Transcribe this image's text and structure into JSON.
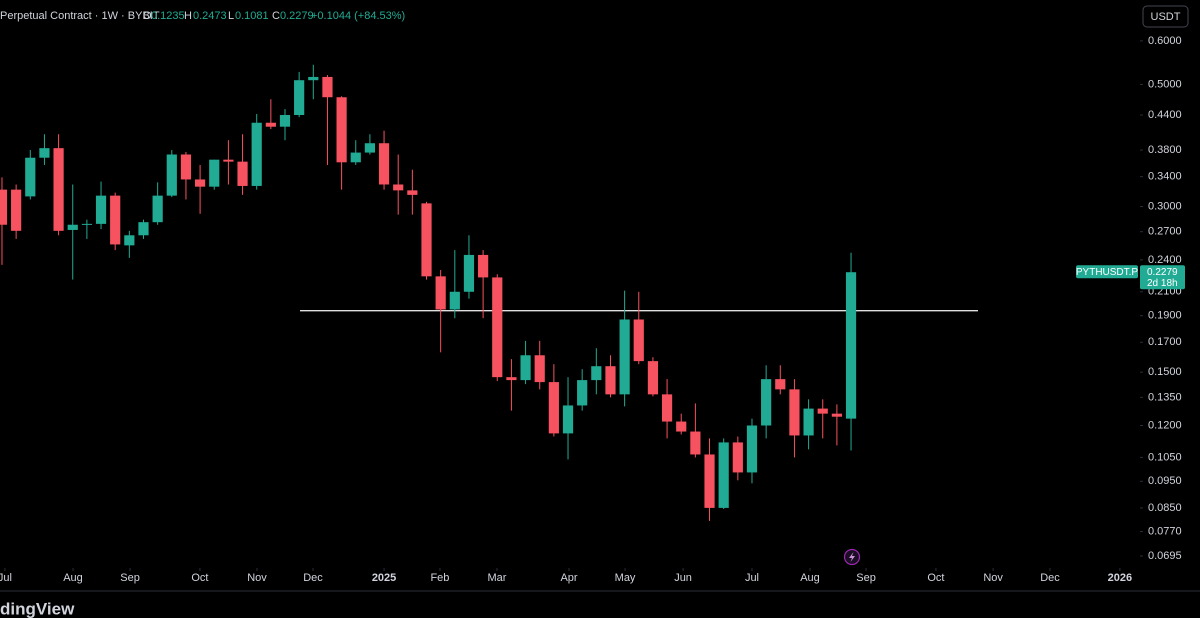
{
  "chart_data": {
    "type": "candlestick",
    "header": {
      "info": "Perpetual Contract · 1W · BYBIT",
      "ohlc_letters": [
        "O",
        "H",
        "L",
        "C"
      ],
      "change": "+0.1044 (+84.53%)"
    },
    "currency": "USDT",
    "symbol": "PYTHUSDT.P",
    "countdown": "2d 18h",
    "watermark": "dingView",
    "log_scale": true,
    "grid": false,
    "up_color": "#22ab94",
    "down_color": "#f7525f",
    "categories": [
      null,
      null,
      null,
      null,
      null,
      null,
      null,
      null,
      null,
      null,
      null,
      null,
      null,
      null,
      null,
      null,
      null,
      null,
      null,
      null,
      null,
      null,
      null,
      null,
      null,
      null,
      null,
      null,
      null,
      null,
      null,
      null,
      null,
      null,
      null,
      null,
      null,
      null,
      null,
      null,
      null,
      null,
      null,
      null,
      null,
      null,
      null,
      null,
      null,
      null,
      null,
      null,
      null,
      null,
      null,
      null,
      null,
      null,
      null,
      null,
      null
    ],
    "open": [
      0.322,
      0.322,
      0.313,
      0.368,
      0.383,
      0.272,
      0.278,
      0.279,
      0.314,
      0.255,
      0.266,
      0.281,
      0.314,
      0.373,
      0.336,
      0.326,
      0.365,
      0.362,
      0.327,
      0.426,
      0.419,
      0.44,
      0.509,
      0.516,
      0.474,
      0.361,
      0.376,
      0.391,
      0.329,
      0.321,
      0.304,
      0.224,
      0.195,
      0.21,
      0.245,
      0.223,
      0.1469,
      0.1451,
      0.161,
      0.1439,
      0.1161,
      0.1305,
      0.1451,
      0.1538,
      0.1367,
      0.187,
      0.1571,
      0.1367,
      0.122,
      0.117,
      0.1063,
      0.085,
      0.1118,
      0.0986,
      0.12,
      0.1457,
      0.1396,
      0.1151,
      0.1288,
      0.1261,
      0.1235
    ],
    "high": [
      0.339,
      0.329,
      0.38,
      0.406,
      0.406,
      0.329,
      0.284,
      0.333,
      0.318,
      0.271,
      0.284,
      0.332,
      0.38,
      0.377,
      0.357,
      0.365,
      0.396,
      0.406,
      0.442,
      0.47,
      0.451,
      0.527,
      0.543,
      0.52,
      0.476,
      0.396,
      0.406,
      0.412,
      0.373,
      0.35,
      0.306,
      0.23,
      0.25,
      0.266,
      0.25,
      0.226,
      0.1584,
      0.171,
      0.171,
      0.1551,
      0.1469,
      0.1519,
      0.1658,
      0.161,
      0.211,
      0.21,
      0.1597,
      0.1457,
      0.1261,
      0.1316,
      0.1137,
      0.1137,
      0.1146,
      0.1235,
      0.1544,
      0.1544,
      0.1457,
      0.1339,
      0.1339,
      0.1311,
      0.2473
    ],
    "low": [
      0.235,
      0.262,
      0.309,
      0.357,
      0.266,
      0.221,
      0.262,
      0.273,
      0.25,
      0.242,
      0.262,
      0.278,
      0.312,
      0.309,
      0.291,
      0.322,
      0.329,
      0.315,
      0.322,
      0.415,
      0.396,
      0.436,
      0.47,
      0.357,
      0.322,
      0.357,
      0.373,
      0.322,
      0.29,
      0.29,
      0.221,
      0.163,
      0.188,
      0.204,
      0.188,
      0.1445,
      0.1277,
      0.1427,
      0.1396,
      0.1146,
      0.1041,
      0.1277,
      0.1367,
      0.135,
      0.13,
      0.1551,
      0.1356,
      0.1137,
      0.1156,
      0.105,
      0.0805,
      0.0846,
      0.0954,
      0.0942,
      0.1137,
      0.1367,
      0.105,
      0.1086,
      0.1137,
      0.1104,
      0.1081
    ],
    "close": [
      0.278,
      0.271,
      0.368,
      0.383,
      0.271,
      0.278,
      0.279,
      0.314,
      0.256,
      0.266,
      0.281,
      0.314,
      0.373,
      0.336,
      0.326,
      0.365,
      0.362,
      0.327,
      0.426,
      0.419,
      0.44,
      0.509,
      0.516,
      0.474,
      0.361,
      0.376,
      0.391,
      0.329,
      0.321,
      0.315,
      0.224,
      0.195,
      0.21,
      0.245,
      0.223,
      0.1469,
      0.1451,
      0.161,
      0.1439,
      0.1161,
      0.1305,
      0.1451,
      0.1538,
      0.1367,
      0.187,
      0.1571,
      0.1367,
      0.122,
      0.117,
      0.1063,
      0.085,
      0.1118,
      0.0986,
      0.12,
      0.1457,
      0.1396,
      0.1151,
      0.1288,
      0.1261,
      0.1245,
      0.2279
    ],
    "hline": {
      "value": 0.194,
      "from": 21.06,
      "to": 68.97,
      "color": "#e0e0e0"
    },
    "xlim": [
      -0.14,
      80.42
    ],
    "xticks": [
      {
        "value": 0.21,
        "label": "Jul"
      },
      {
        "value": 5.02,
        "label": "Aug"
      },
      {
        "value": 9.05,
        "label": "Sep"
      },
      {
        "value": 13.99,
        "label": "Oct"
      },
      {
        "value": 18.02,
        "label": "Nov"
      },
      {
        "value": 21.98,
        "label": "Dec"
      },
      {
        "value": 27.0,
        "label": "2025"
      },
      {
        "value": 30.95,
        "label": "Feb"
      },
      {
        "value": 34.98,
        "label": "Mar"
      },
      {
        "value": 40.07,
        "label": "Apr"
      },
      {
        "value": 44.03,
        "label": "May"
      },
      {
        "value": 48.13,
        "label": "Jun"
      },
      {
        "value": 53.0,
        "label": "Jul"
      },
      {
        "value": 57.1,
        "label": "Aug"
      },
      {
        "value": 61.06,
        "label": "Sep"
      },
      {
        "value": 66.0,
        "label": "Oct"
      },
      {
        "value": 70.04,
        "label": "Nov"
      },
      {
        "value": 74.06,
        "label": "Dec"
      },
      {
        "value": 79.0,
        "label": "2026"
      }
    ],
    "ylim": [
      0.0661,
      0.712
    ],
    "yticks": [
      {
        "value": 0.6,
        "label": "0.6000"
      },
      {
        "value": 0.5,
        "label": "0.5000"
      },
      {
        "value": 0.44,
        "label": "0.4400"
      },
      {
        "value": 0.38,
        "label": "0.3800"
      },
      {
        "value": 0.34,
        "label": "0.3400"
      },
      {
        "value": 0.3,
        "label": "0.3000"
      },
      {
        "value": 0.27,
        "label": "0.2700"
      },
      {
        "value": 0.24,
        "label": "0.2400"
      },
      {
        "value": 0.21,
        "label": "0.2100"
      },
      {
        "value": 0.19,
        "label": "0.1900"
      },
      {
        "value": 0.17,
        "label": "0.1700"
      },
      {
        "value": 0.15,
        "label": "0.1500"
      },
      {
        "value": 0.135,
        "label": "0.1350"
      },
      {
        "value": 0.12,
        "label": "0.1200"
      },
      {
        "value": 0.105,
        "label": "0.1050"
      },
      {
        "value": 0.095,
        "label": "0.0950"
      },
      {
        "value": 0.085,
        "label": "0.0850"
      },
      {
        "value": 0.077,
        "label": "0.0770"
      },
      0.0695
    ]
  }
}
